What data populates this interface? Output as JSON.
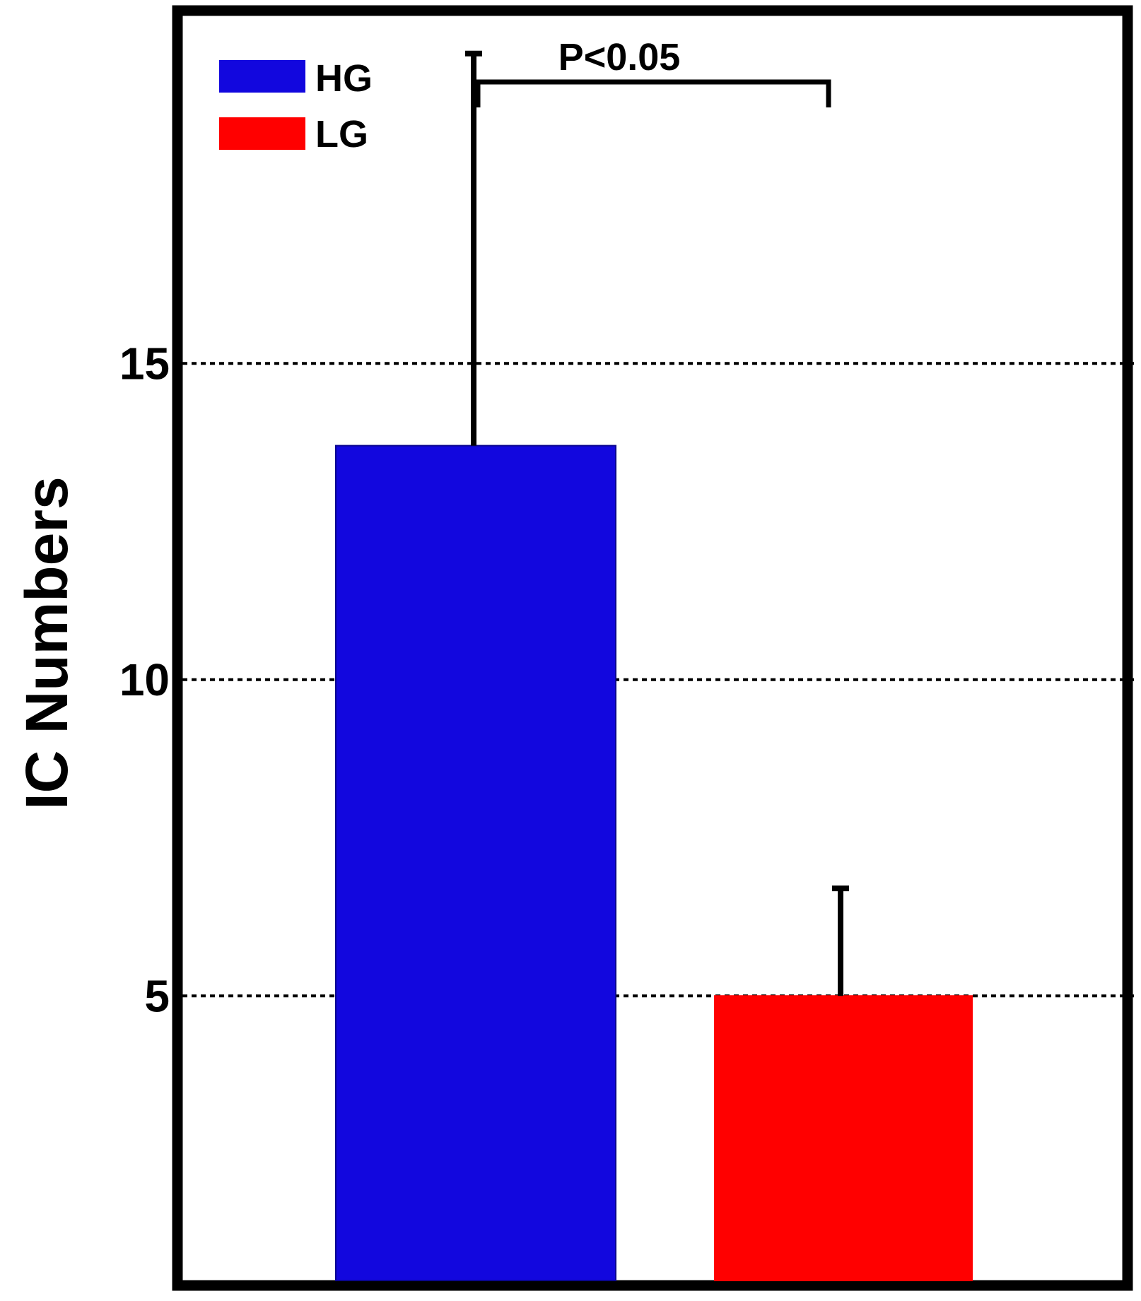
{
  "chart_data": {
    "type": "bar",
    "title": "",
    "xlabel": "",
    "ylabel": "IC Numbers",
    "ylim": [
      0.5,
      20.5
    ],
    "yticks": [
      5,
      10,
      15
    ],
    "grid": "dotted horizontal lines at y ticks",
    "legend_position": "top-left",
    "categories": [
      "HG",
      "LG"
    ],
    "series": [
      {
        "name": "HG",
        "value": 13.7,
        "error": 6.2,
        "color": "#1207DE"
      },
      {
        "name": "LG",
        "value": 5.0,
        "error": 1.7,
        "color": "#FF0000"
      }
    ],
    "annotation": {
      "text": "P<0.05",
      "between": [
        "HG",
        "LG"
      ]
    }
  }
}
